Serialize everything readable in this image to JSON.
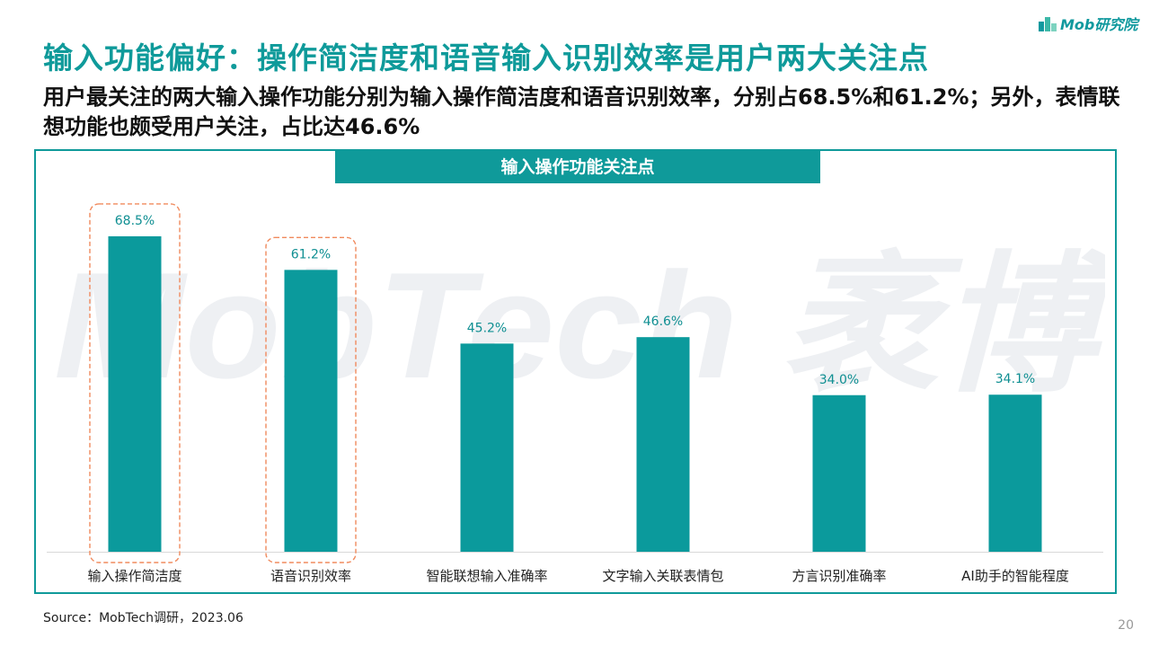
{
  "logo": {
    "text": "Mob研究院",
    "color": "#11999e"
  },
  "title": "输入功能偏好：操作简洁度和语音输入识别效率是用户两大关注点",
  "subtitle": "用户最关注的两大输入操作功能分别为输入操作简洁度和语音识别效率，分别占68.5%和61.2%；另外，表情联想功能也颇受用户关注，占比达46.6%",
  "watermark": "MobTech 袤博",
  "footer": {
    "source": "Source：MobTech调研，2023.06",
    "page": "20"
  },
  "colors": {
    "accent": "#0f9a9a",
    "bar": "#0b9a9c",
    "highlight_border": "#f08a5d"
  },
  "chart_data": {
    "type": "bar",
    "title": "输入操作功能关注点",
    "categories": [
      "输入操作简洁度",
      "语音识别效率",
      "智能联想输入准确率",
      "文字输入关联表情包",
      "方言识别准确率",
      "AI助手的智能程度"
    ],
    "values": [
      68.5,
      61.2,
      45.2,
      46.6,
      34.0,
      34.1
    ],
    "value_labels": [
      "68.5%",
      "61.2%",
      "45.2%",
      "46.6%",
      "34.0%",
      "34.1%"
    ],
    "unit": "%",
    "ylim": [
      0,
      80
    ],
    "highlighted": [
      "输入操作简洁度",
      "语音识别效率"
    ],
    "grid": false,
    "legend": "none"
  }
}
